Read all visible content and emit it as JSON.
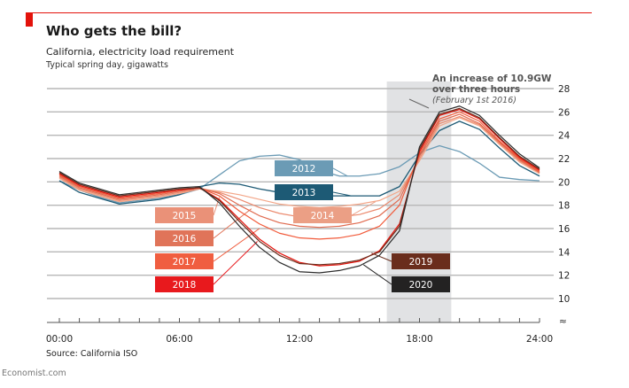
{
  "header": {
    "title": "Who gets the bill?",
    "subtitle": "California, electricity load requirement",
    "subtitle2": "Typical spring day, gigawatts"
  },
  "footer": {
    "source": "Source: California ISO",
    "brand": "Economist.com"
  },
  "colors": {
    "accent": "#e3120b",
    "shade": "#e1e2e4",
    "grid": "#b7b7b7"
  },
  "chart_data": {
    "type": "line",
    "title": "Who gets the bill?",
    "subtitle": "California, electricity load requirement",
    "ylabel": "Typical spring day, gigawatts",
    "xlabel": "",
    "ylim": [
      10,
      28
    ],
    "xlim": [
      0,
      24
    ],
    "y_ticks": [
      "28",
      "26",
      "24",
      "22",
      "20",
      "18",
      "16",
      "14",
      "12",
      "10"
    ],
    "y_tick_values": [
      28,
      26,
      24,
      22,
      20,
      18,
      16,
      14,
      12,
      10
    ],
    "x_ticks": [
      "00:00",
      "06:00",
      "12:00",
      "18:00",
      "24:00"
    ],
    "x_tick_values": [
      0,
      6,
      12,
      18,
      24
    ],
    "grid": true,
    "axis_break_symbol": "≈",
    "shaded_range": [
      16.5,
      19.5
    ],
    "annotation": {
      "line1": "An increase of 10.9GW",
      "line2": "over three hours",
      "line3": "(February 1st 2016)"
    },
    "x": [
      0,
      1,
      2,
      3,
      4,
      5,
      6,
      7,
      8,
      9,
      10,
      11,
      12,
      13,
      14,
      15,
      16,
      17,
      18,
      19,
      20,
      21,
      22,
      23,
      24
    ],
    "series": [
      {
        "name": "2012",
        "color": "#6b9bb5",
        "values": [
          20.1,
          19.3,
          18.7,
          18.2,
          18.4,
          18.6,
          18.9,
          19.4,
          20.6,
          21.8,
          22.2,
          22.3,
          21.9,
          21.0,
          20.5,
          20.5,
          20.7,
          21.3,
          22.5,
          23.1,
          22.6,
          21.6,
          20.4,
          20.2,
          20.1
        ]
      },
      {
        "name": "2013",
        "color": "#1d5a75",
        "values": [
          20.1,
          19.1,
          18.6,
          18.1,
          18.3,
          18.5,
          18.9,
          19.6,
          19.9,
          19.8,
          19.4,
          19.1,
          18.9,
          18.8,
          18.8,
          18.8,
          18.8,
          19.6,
          22.3,
          24.4,
          25.2,
          24.5,
          22.9,
          21.4,
          20.5
        ]
      },
      {
        "name": "2014",
        "color": "#f3a688",
        "values": [
          20.3,
          19.3,
          18.8,
          18.3,
          18.5,
          18.7,
          19.0,
          19.4,
          19.2,
          18.9,
          18.5,
          18.1,
          17.9,
          17.8,
          17.9,
          18.1,
          18.4,
          19.2,
          21.8,
          24.8,
          25.5,
          24.8,
          23.2,
          21.7,
          20.7
        ]
      },
      {
        "name": "2015",
        "color": "#eb8a6e",
        "values": [
          20.4,
          19.4,
          18.9,
          18.4,
          18.6,
          18.8,
          19.1,
          19.4,
          19.1,
          18.5,
          17.8,
          17.3,
          17.0,
          16.9,
          17.0,
          17.2,
          17.7,
          18.9,
          22.0,
          25.0,
          25.6,
          24.9,
          23.3,
          21.8,
          20.8
        ]
      },
      {
        "name": "2016",
        "color": "#e06a4f",
        "values": [
          20.5,
          19.5,
          19.0,
          18.5,
          18.7,
          18.9,
          19.2,
          19.5,
          19.0,
          18.0,
          17.1,
          16.5,
          16.2,
          16.1,
          16.2,
          16.5,
          17.1,
          18.5,
          22.2,
          25.2,
          25.8,
          25.0,
          23.4,
          21.9,
          20.8
        ]
      },
      {
        "name": "2017",
        "color": "#f15a3a",
        "values": [
          20.6,
          19.6,
          19.1,
          18.6,
          18.8,
          19.0,
          19.3,
          19.5,
          18.8,
          17.5,
          16.4,
          15.6,
          15.2,
          15.1,
          15.2,
          15.5,
          16.2,
          18.0,
          22.4,
          25.4,
          26.0,
          25.2,
          23.5,
          22.0,
          20.9
        ]
      },
      {
        "name": "2018",
        "color": "#e3120b",
        "values": [
          20.7,
          19.7,
          19.2,
          18.7,
          18.9,
          19.1,
          19.3,
          19.5,
          18.5,
          16.8,
          15.1,
          13.9,
          13.1,
          12.8,
          12.9,
          13.2,
          14.1,
          16.4,
          22.6,
          25.7,
          26.2,
          25.4,
          23.7,
          22.1,
          21.0
        ]
      },
      {
        "name": "2019",
        "color": "#6a2d1c",
        "values": [
          20.8,
          19.8,
          19.3,
          18.8,
          19.0,
          19.2,
          19.4,
          19.5,
          18.4,
          16.6,
          14.9,
          13.7,
          13.0,
          12.9,
          13.0,
          13.3,
          14.0,
          16.2,
          22.8,
          25.8,
          26.3,
          25.5,
          23.8,
          22.2,
          21.1
        ]
      },
      {
        "name": "2020",
        "color": "#2b2b2b",
        "values": [
          20.9,
          19.9,
          19.4,
          18.9,
          19.1,
          19.3,
          19.5,
          19.6,
          18.2,
          16.2,
          14.4,
          13.1,
          12.3,
          12.2,
          12.4,
          12.8,
          13.7,
          15.8,
          23.0,
          26.0,
          26.5,
          25.7,
          24.0,
          22.4,
          21.2
        ]
      }
    ],
    "labels": [
      {
        "name": "2012",
        "color": "#6b9bb5",
        "anchor_hour": 14.4,
        "anchor_value": 20.5
      },
      {
        "name": "2013",
        "color": "#1d5a75",
        "anchor_hour": 14.6,
        "anchor_value": 18.8
      },
      {
        "name": "2014",
        "color": "#eb9f85",
        "anchor_hour": 15.8,
        "anchor_value": 18.3
      },
      {
        "name": "2015",
        "color": "#ea9178",
        "anchor_hour": 8.0,
        "anchor_value": 18.7
      },
      {
        "name": "2016",
        "color": "#e07459",
        "anchor_hour": 9.6,
        "anchor_value": 17.7
      },
      {
        "name": "2017",
        "color": "#f05e40",
        "anchor_hour": 10.0,
        "anchor_value": 16.0
      },
      {
        "name": "2018",
        "color": "#e8191d",
        "anchor_hour": 9.9,
        "anchor_value": 14.9
      },
      {
        "name": "2019",
        "color": "#6a2d1c",
        "anchor_hour": 15.6,
        "anchor_value": 13.9
      },
      {
        "name": "2020",
        "color": "#232222",
        "anchor_hour": 15.2,
        "anchor_value": 12.9
      }
    ]
  }
}
